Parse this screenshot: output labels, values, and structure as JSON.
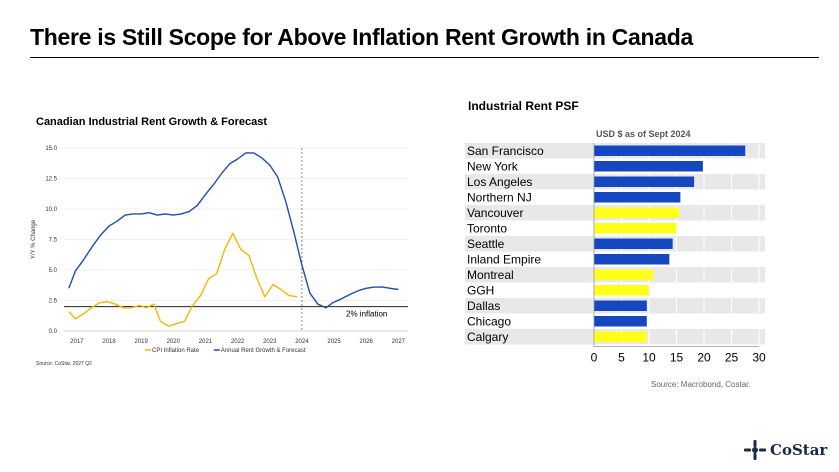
{
  "slide": {
    "title": "There is Still Scope for Above Inflation Rent Growth in Canada"
  },
  "logo": {
    "text": "CoStar",
    "icon": "costar-star-icon",
    "color": "#1a2a4a"
  },
  "chart_data": [
    {
      "type": "line",
      "title": "Canadian Industrial Rent Growth & Forecast",
      "ylabel": "Y/Y % Change",
      "xlabel": "",
      "ylim": [
        0,
        15
      ],
      "xlim": [
        2016.6,
        2027.3
      ],
      "yticks": [
        "0.0",
        "2.5",
        "5.0",
        "7.5",
        "10.0",
        "12.5",
        "15.0"
      ],
      "xticks": [
        "2017",
        "2018",
        "2019",
        "2020",
        "2021",
        "2022",
        "2023",
        "2024",
        "2025",
        "2026",
        "2027"
      ],
      "grid": "horizontal",
      "legend_position": "bottom",
      "vertical_marker": 2024,
      "reference_line": {
        "value": 2,
        "label": "2% inflation"
      },
      "source": "Source: CoStar, 2027 Q2",
      "series": [
        {
          "name": "CPI Inflation Rate",
          "color": "#f5b800",
          "x": [
            2016.75,
            2016.95,
            2017.2,
            2017.45,
            2017.7,
            2017.95,
            2018.2,
            2018.45,
            2018.7,
            2018.95,
            2019.15,
            2019.4,
            2019.6,
            2019.85,
            2020.1,
            2020.35,
            2020.6,
            2020.85,
            2021.1,
            2021.35,
            2021.6,
            2021.85,
            2022.1,
            2022.35,
            2022.6,
            2022.85,
            2023.1,
            2023.35,
            2023.6,
            2023.85
          ],
          "values": [
            1.6,
            1.0,
            1.4,
            1.9,
            2.3,
            2.4,
            2.2,
            1.9,
            1.9,
            2.1,
            1.9,
            2.2,
            0.8,
            0.4,
            0.6,
            0.8,
            2.1,
            2.9,
            4.3,
            4.7,
            6.7,
            8.0,
            6.7,
            6.2,
            4.3,
            2.8,
            3.8,
            3.4,
            2.9,
            2.8
          ]
        },
        {
          "name": "Annual Rent Growth & Forecast",
          "color": "#1f4eaa",
          "x": [
            2016.75,
            2016.95,
            2017.2,
            2017.5,
            2017.75,
            2018.0,
            2018.25,
            2018.5,
            2018.75,
            2019.0,
            2019.25,
            2019.5,
            2019.75,
            2020.0,
            2020.25,
            2020.5,
            2020.75,
            2021.0,
            2021.25,
            2021.5,
            2021.75,
            2022.0,
            2022.25,
            2022.5,
            2022.75,
            2023.0,
            2023.25,
            2023.5,
            2023.75,
            2024.0,
            2024.25,
            2024.5,
            2024.75,
            2024.95,
            2025.2,
            2025.5,
            2025.75,
            2026.0,
            2026.25,
            2026.5,
            2026.75,
            2027.0
          ],
          "values": [
            3.5,
            4.9,
            5.8,
            7.0,
            7.9,
            8.6,
            9.0,
            9.5,
            9.6,
            9.6,
            9.7,
            9.5,
            9.6,
            9.5,
            9.6,
            9.8,
            10.3,
            11.2,
            12.0,
            12.9,
            13.7,
            14.1,
            14.6,
            14.6,
            14.2,
            13.6,
            12.6,
            10.6,
            8.1,
            5.4,
            3.1,
            2.2,
            1.9,
            2.3,
            2.6,
            3.0,
            3.3,
            3.5,
            3.6,
            3.6,
            3.5,
            3.4
          ]
        }
      ]
    },
    {
      "type": "bar",
      "orientation": "horizontal",
      "title": "Industrial Rent PSF",
      "unit_label": "USD $ as of Sept 2024",
      "source": "Source: Macrobond, Costar.",
      "xlim": [
        0,
        30
      ],
      "xticks": [
        "0",
        "5",
        "10",
        "15",
        "20",
        "25",
        "30"
      ],
      "color_us": "#1547c0",
      "color_canada": "#ffff1a",
      "categories": [
        "San Francisco",
        "New York",
        "Los Angeles",
        "Northern NJ",
        "Vancouver",
        "Toronto",
        "Seattle",
        "Inland Empire",
        "Montreal",
        "GGH",
        "Dallas",
        "Chicago",
        "Calgary"
      ],
      "values": [
        27.5,
        19.8,
        18.2,
        15.7,
        15.5,
        15.0,
        14.3,
        13.7,
        10.8,
        10.0,
        9.6,
        9.6,
        9.6
      ],
      "country": [
        "US",
        "US",
        "US",
        "US",
        "Canada",
        "Canada",
        "US",
        "US",
        "Canada",
        "Canada",
        "US",
        "US",
        "Canada"
      ]
    }
  ]
}
